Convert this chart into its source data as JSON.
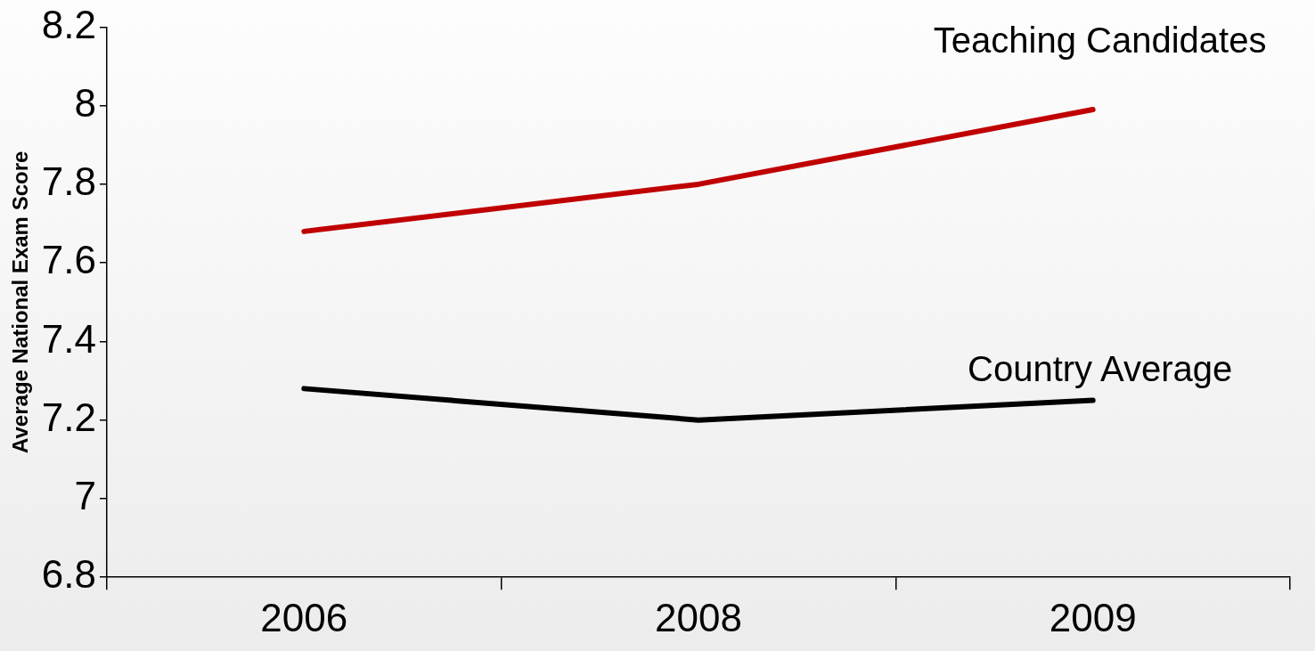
{
  "chart_data": {
    "type": "line",
    "ylabel": "Average National Exam Score",
    "categories": [
      "2006",
      "2008",
      "2009"
    ],
    "series": [
      {
        "name": "Teaching Candidates",
        "color": "#c00000",
        "values": [
          7.68,
          7.8,
          7.99
        ]
      },
      {
        "name": "Country Average",
        "color": "#000000",
        "values": [
          7.28,
          7.2,
          7.25
        ]
      }
    ],
    "ylim": [
      6.8,
      8.2
    ],
    "yticks": [
      6.8,
      7,
      7.2,
      7.4,
      7.6,
      7.8,
      8,
      8.2
    ],
    "grid": false,
    "legend": false,
    "marker": "none",
    "line_style": "solid"
  }
}
